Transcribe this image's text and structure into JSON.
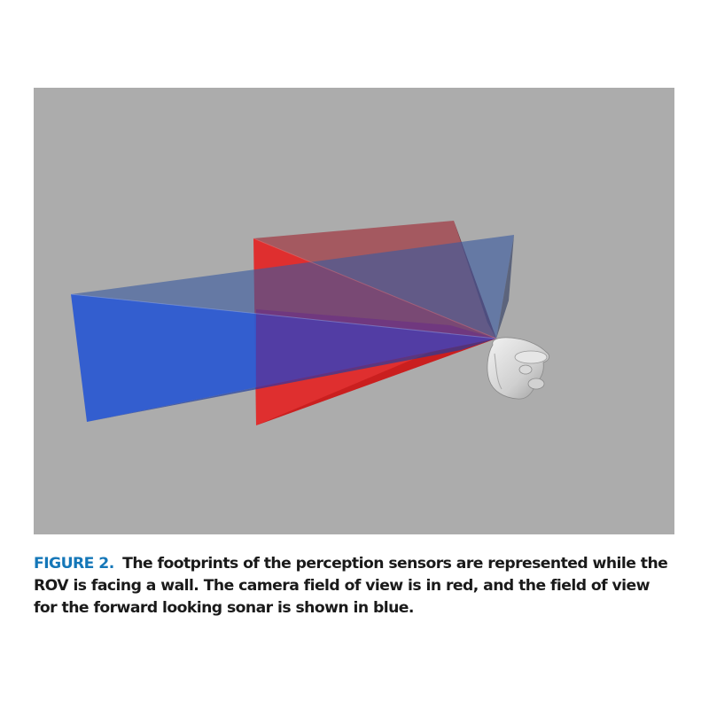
{
  "figure": {
    "label": "FIGURE 2.",
    "caption": "The footprints of the perception sensors are represented while the ROV is facing a wall. The camera field of view is in red, and the field of view for the forward looking sonar is shown in blue.",
    "colors": {
      "background": "#acacac",
      "label": "#1577b8",
      "camera_fov": "#e02020",
      "sonar_fov": "#2d55d0",
      "rov_body": "#d8d8d8"
    },
    "icons": [
      "rov-model",
      "camera-fov-frustum",
      "sonar-fov-frustum"
    ]
  }
}
